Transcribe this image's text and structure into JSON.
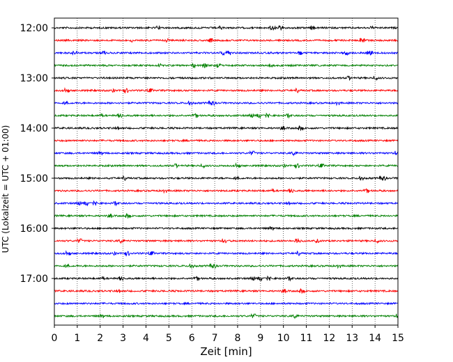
{
  "chart_data": {
    "type": "line",
    "title": "",
    "xlabel": "Zeit  [min]",
    "ylabel": "UTC (Lokalzeit = UTC + 01:00)",
    "xlim": [
      0,
      15
    ],
    "x_ticks": [
      "0",
      "1",
      "2",
      "3",
      "4",
      "5",
      "6",
      "7",
      "8",
      "9",
      "10",
      "11",
      "12",
      "13",
      "14",
      "15"
    ],
    "y_ticks": [
      "12:00",
      "13:00",
      "14:00",
      "15:00",
      "16:00",
      "17:00"
    ],
    "traces_per_hour": 4,
    "trace_start_times": [
      "12:00",
      "12:15",
      "12:30",
      "12:45",
      "13:00",
      "13:15",
      "13:30",
      "13:45",
      "14:00",
      "14:15",
      "14:30",
      "14:45",
      "15:00",
      "15:15",
      "15:30",
      "15:45",
      "16:00",
      "16:15",
      "16:30",
      "16:45",
      "17:00",
      "17:15",
      "17:30",
      "17:45"
    ],
    "trace_colors": [
      "#000000",
      "#ff0000",
      "#0000ff",
      "#008000"
    ],
    "grid": {
      "x_dotted_minutes": true
    }
  }
}
